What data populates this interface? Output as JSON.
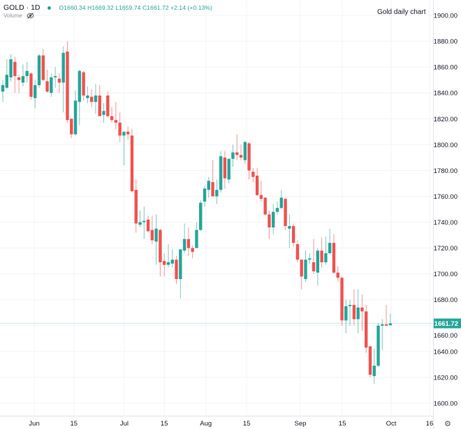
{
  "header": {
    "symbol": "GOLD · 1D",
    "ohlc_text": "O1660.34 H1669.32 L1659.74 C1661.72 +2.14 (+0.13%)",
    "volume_label": "Volume",
    "volume_icon": "eye-off-icon"
  },
  "settings_icon": "gear-icon",
  "colors": {
    "up": "#26a69a",
    "down": "#ef5350",
    "grid": "#f0f3fa",
    "axis_text": "#131722"
  },
  "chart_data": {
    "type": "candlestick",
    "title": "Gold daily chart",
    "ylim": [
      1590,
      1910
    ],
    "yticks": [
      1600,
      1620,
      1640,
      1660,
      1680,
      1700,
      1720,
      1740,
      1760,
      1780,
      1800,
      1820,
      1840,
      1860,
      1880,
      1900
    ],
    "ytick_labels": [
      "1600.00",
      "1620.00",
      "1640.00",
      "1660.00",
      "1680.00",
      "1700.00",
      "1720.00",
      "1740.00",
      "1760.00",
      "1780.00",
      "1800.00",
      "1820.00",
      "1840.00",
      "1860.00",
      "1880.00",
      "1900.00"
    ],
    "last_price": 1661.72,
    "last_price_label": "1661.72",
    "xticks": [
      {
        "label": "Jun",
        "index": 7.8
      },
      {
        "label": "15",
        "index": 17.6
      },
      {
        "label": "Jul",
        "index": 30.1
      },
      {
        "label": "15",
        "index": 40
      },
      {
        "label": "Aug",
        "index": 50.3
      },
      {
        "label": "15",
        "index": 60.4
      },
      {
        "label": "Sep",
        "index": 73.7
      },
      {
        "label": "15",
        "index": 84.1
      },
      {
        "label": "Oct",
        "index": 96.2
      },
      {
        "label": "16",
        "index": 105.7
      }
    ],
    "ohlc": [
      [
        1841,
        1850,
        1833,
        1846
      ],
      [
        1844,
        1866,
        1843,
        1854
      ],
      [
        1852,
        1870,
        1849,
        1866
      ],
      [
        1864,
        1868,
        1840,
        1853
      ],
      [
        1852,
        1854,
        1840,
        1850
      ],
      [
        1848,
        1862,
        1845,
        1853
      ],
      [
        1853,
        1864,
        1848,
        1857
      ],
      [
        1855,
        1856,
        1835,
        1837
      ],
      [
        1836,
        1850,
        1828,
        1846
      ],
      [
        1846,
        1870,
        1844,
        1869
      ],
      [
        1869,
        1874,
        1849,
        1850
      ],
      [
        1849,
        1858,
        1840,
        1841
      ],
      [
        1840,
        1855,
        1837,
        1852
      ],
      [
        1852,
        1860,
        1844,
        1853
      ],
      [
        1851,
        1855,
        1840,
        1848
      ],
      [
        1848,
        1876,
        1825,
        1871
      ],
      [
        1872,
        1880,
        1817,
        1819
      ],
      [
        1820,
        1820,
        1805,
        1808
      ],
      [
        1808,
        1842,
        1807,
        1834
      ],
      [
        1833,
        1858,
        1815,
        1857
      ],
      [
        1856,
        1857,
        1834,
        1838
      ],
      [
        1836,
        1845,
        1832,
        1838
      ],
      [
        1837,
        1843,
        1829,
        1833
      ],
      [
        1833,
        1847,
        1824,
        1838
      ],
      [
        1838,
        1846,
        1822,
        1822
      ],
      [
        1823,
        1832,
        1817,
        1826
      ],
      [
        1838,
        1841,
        1821,
        1822
      ],
      [
        1822,
        1829,
        1817,
        1819
      ],
      [
        1819,
        1833,
        1812,
        1817
      ],
      [
        1817,
        1825,
        1802,
        1807
      ],
      [
        1807,
        1810,
        1784,
        1810
      ],
      [
        1810,
        1814,
        1804,
        1808
      ],
      [
        1807,
        1812,
        1763,
        1764
      ],
      [
        1765,
        1773,
        1732,
        1739
      ],
      [
        1738,
        1749,
        1736,
        1740
      ],
      [
        1740,
        1752,
        1727,
        1741
      ],
      [
        1742,
        1745,
        1732,
        1733
      ],
      [
        1734,
        1745,
        1723,
        1726
      ],
      [
        1725,
        1746,
        1707,
        1735
      ],
      [
        1734,
        1735,
        1698,
        1709
      ],
      [
        1710,
        1716,
        1698,
        1707
      ],
      [
        1707,
        1723,
        1705,
        1709
      ],
      [
        1708,
        1719,
        1705,
        1711
      ],
      [
        1711,
        1714,
        1692,
        1696
      ],
      [
        1696,
        1719,
        1681,
        1719
      ],
      [
        1718,
        1739,
        1716,
        1727
      ],
      [
        1727,
        1736,
        1714,
        1720
      ],
      [
        1720,
        1722,
        1712,
        1717
      ],
      [
        1720,
        1740,
        1720,
        1734
      ],
      [
        1734,
        1757,
        1733,
        1755
      ],
      [
        1756,
        1768,
        1752,
        1766
      ],
      [
        1765,
        1775,
        1759,
        1772
      ],
      [
        1771,
        1788,
        1760,
        1760
      ],
      [
        1760,
        1773,
        1754,
        1765
      ],
      [
        1765,
        1795,
        1763,
        1791
      ],
      [
        1790,
        1795,
        1766,
        1774
      ],
      [
        1773,
        1789,
        1770,
        1789
      ],
      [
        1789,
        1800,
        1783,
        1794
      ],
      [
        1794,
        1808,
        1788,
        1792
      ],
      [
        1792,
        1800,
        1788,
        1790
      ],
      [
        1788,
        1803,
        1785,
        1802
      ],
      [
        1801,
        1802,
        1773,
        1780
      ],
      [
        1779,
        1782,
        1771,
        1775
      ],
      [
        1776,
        1782,
        1760,
        1761
      ],
      [
        1761,
        1772,
        1756,
        1758
      ],
      [
        1759,
        1759,
        1745,
        1746
      ],
      [
        1746,
        1749,
        1727,
        1736
      ],
      [
        1736,
        1754,
        1731,
        1748
      ],
      [
        1748,
        1756,
        1746,
        1751
      ],
      [
        1751,
        1765,
        1750,
        1759
      ],
      [
        1758,
        1759,
        1734,
        1737
      ],
      [
        1735,
        1746,
        1720,
        1737
      ],
      [
        1737,
        1739,
        1721,
        1724
      ],
      [
        1723,
        1726,
        1709,
        1711
      ],
      [
        1711,
        1711,
        1688,
        1698
      ],
      [
        1696,
        1718,
        1694,
        1711
      ],
      [
        1711,
        1716,
        1708,
        1712
      ],
      [
        1709,
        1727,
        1700,
        1702
      ],
      [
        1701,
        1720,
        1691,
        1718
      ],
      [
        1718,
        1728,
        1705,
        1709
      ],
      [
        1709,
        1729,
        1707,
        1716
      ],
      [
        1716,
        1735,
        1715,
        1724
      ],
      [
        1724,
        1731,
        1700,
        1701
      ],
      [
        1701,
        1706,
        1694,
        1697
      ],
      [
        1697,
        1698,
        1660,
        1664
      ],
      [
        1664,
        1680,
        1654,
        1675
      ],
      [
        1675,
        1680,
        1660,
        1676
      ],
      [
        1676,
        1688,
        1660,
        1665
      ],
      [
        1665,
        1688,
        1654,
        1674
      ],
      [
        1674,
        1684,
        1656,
        1671
      ],
      [
        1671,
        1676,
        1639,
        1643
      ],
      [
        1644,
        1644,
        1620,
        1622
      ],
      [
        1621,
        1642,
        1615,
        1629
      ],
      [
        1629,
        1662,
        1628,
        1660
      ],
      [
        1660,
        1665,
        1641,
        1661
      ],
      [
        1661,
        1676,
        1660,
        1660
      ],
      [
        1660.34,
        1669.32,
        1659.74,
        1661.72
      ]
    ]
  }
}
